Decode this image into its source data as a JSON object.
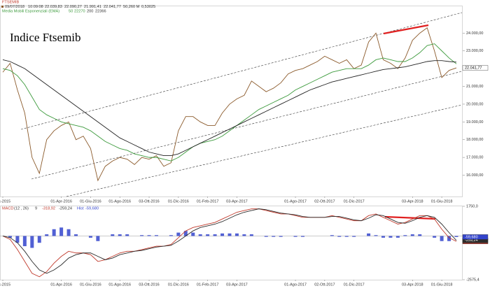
{
  "chart_data": [
    {
      "type": "line",
      "title": "Indice Ftsemib",
      "header": {
        "symbol": "FTSEMIB",
        "date": "09/07/2018",
        "time": "10:09:08",
        "open": "22.039,83",
        "high": "22.090,27",
        "low": "21.991,41",
        "volume": "50,260 M",
        "ratio": "0,53025",
        "ema_title": "Media Mobili Esponenziali (EMA)"
      },
      "categories": [
        "Dic-2015",
        null,
        null,
        null,
        null,
        null,
        null,
        null,
        "01-Apr-2016",
        null,
        null,
        null,
        "01-Giu-2016",
        null,
        null,
        null,
        "01-Ago-2016",
        null,
        null,
        null,
        "03-Ott-2016",
        null,
        null,
        null,
        "01-Dic-2016",
        null,
        null,
        null,
        "01-Feb-2017",
        null,
        null,
        null,
        "03-Apr-2017",
        null,
        null,
        null,
        null,
        null,
        null,
        null,
        "01-Ago-2017",
        null,
        null,
        null,
        "02-Ott-2017",
        null,
        null,
        null,
        "01-Dic-2017",
        null,
        null,
        null,
        null,
        null,
        null,
        null,
        "03-Apr-2018",
        null,
        null,
        null,
        "01-Giu-2018",
        null,
        null
      ],
      "series": [
        {
          "name": "FTSEMIB",
          "color": "#8b5a2b",
          "last_label": "22.041,77",
          "values": [
            21800,
            22300,
            20800,
            19500,
            17000,
            16100,
            18000,
            18500,
            18800,
            19000,
            18000,
            18200,
            17500,
            15700,
            16500,
            16800,
            17000,
            16900,
            16600,
            17000,
            16900,
            17100,
            16500,
            16700,
            18500,
            19300,
            19300,
            19000,
            18800,
            18800,
            19500,
            20000,
            20300,
            20500,
            21300,
            21000,
            20700,
            20900,
            21200,
            21700,
            21900,
            22000,
            22200,
            22400,
            22700,
            22500,
            22300,
            22500,
            22000,
            22200,
            23500,
            24000,
            22500,
            22300,
            22000,
            22600,
            23600,
            24000,
            24300,
            23000,
            21500,
            21900,
            22041.77
          ]
        },
        {
          "name": "50",
          "color": "#3c9a3c",
          "last_label": "22270",
          "values": [
            22000,
            21900,
            21600,
            21100,
            20400,
            19700,
            19400,
            19200,
            19000,
            18900,
            18800,
            18700,
            18500,
            18200,
            17900,
            17700,
            17500,
            17400,
            17200,
            17100,
            17000,
            17000,
            16900,
            16800,
            17000,
            17300,
            17600,
            17800,
            17900,
            18000,
            18200,
            18500,
            18800,
            19100,
            19400,
            19700,
            19900,
            20100,
            20300,
            20500,
            20800,
            21000,
            21200,
            21400,
            21600,
            21800,
            21900,
            22000,
            22000,
            22000,
            22200,
            22500,
            22600,
            22500,
            22400,
            22400,
            22600,
            22900,
            23300,
            23400,
            23000,
            22600,
            22270
          ]
        },
        {
          "name": "200",
          "color": "#222222",
          "last_label": "22366",
          "values": [
            22500,
            22400,
            22200,
            22000,
            21700,
            21400,
            21100,
            20800,
            20500,
            20200,
            19900,
            19600,
            19300,
            19000,
            18700,
            18400,
            18100,
            17900,
            17700,
            17500,
            17300,
            17200,
            17100,
            17100,
            17200,
            17400,
            17600,
            17800,
            18000,
            18200,
            18400,
            18600,
            18800,
            19000,
            19200,
            19400,
            19600,
            19800,
            20000,
            20200,
            20400,
            20600,
            20800,
            20950,
            21100,
            21250,
            21350,
            21450,
            21550,
            21650,
            21750,
            21850,
            21950,
            22000,
            22050,
            22100,
            22200,
            22300,
            22400,
            22450,
            22450,
            22400,
            22366
          ]
        }
      ],
      "ylim": [
        14800,
        25550
      ],
      "yticks": [
        {
          "value": 16000,
          "label": "16.000,00"
        },
        {
          "value": 17000,
          "label": "17.000,00"
        },
        {
          "value": 18000,
          "label": "18.000,00"
        },
        {
          "value": 19000,
          "label": "19.000,00"
        },
        {
          "value": 20000,
          "label": "20.000,00"
        },
        {
          "value": 21000,
          "label": "21.000,00"
        },
        {
          "value": 22000,
          "label": "22.000,00"
        },
        {
          "value": 23000,
          "label": "23.000,00"
        },
        {
          "value": 24000,
          "label": "24.000,00"
        }
      ]
    },
    {
      "type": "line",
      "title": "MACD",
      "subtitle": "(12 , 26)",
      "series": [
        {
          "name": "MACD",
          "color": "#c0392b",
          "last_label": "-318,92",
          "values": [
            0,
            -200,
            -800,
            -1500,
            -2200,
            -2400,
            -2100,
            -1600,
            -1200,
            -900,
            -1000,
            -1000,
            -1100,
            -1500,
            -1400,
            -1200,
            -1000,
            -900,
            -900,
            -800,
            -700,
            -600,
            -600,
            -500,
            -100,
            300,
            500,
            600,
            700,
            800,
            1000,
            1200,
            1400,
            1500,
            1600,
            1600,
            1500,
            1400,
            1300,
            1300,
            1200,
            1100,
            1100,
            1100,
            1100,
            1200,
            1100,
            1000,
            900,
            900,
            1200,
            1300,
            1100,
            900,
            700,
            800,
            1000,
            1200,
            1200,
            1000,
            400,
            -100,
            -318.92
          ]
        },
        {
          "name": "9",
          "color": "#2b2b2b",
          "last_label": "-259,24",
          "values": [
            0,
            -100,
            -400,
            -900,
            -1500,
            -2000,
            -2200,
            -2000,
            -1700,
            -1300,
            -1100,
            -1000,
            -1000,
            -1200,
            -1400,
            -1300,
            -1100,
            -1000,
            -900,
            -850,
            -750,
            -650,
            -600,
            -550,
            -300,
            0,
            300,
            500,
            600,
            700,
            850,
            1050,
            1250,
            1400,
            1500,
            1600,
            1550,
            1450,
            1350,
            1300,
            1250,
            1150,
            1100,
            1100,
            1100,
            1150,
            1150,
            1050,
            950,
            900,
            1050,
            1250,
            1200,
            1000,
            800,
            750,
            900,
            1100,
            1200,
            1100,
            700,
            200,
            -259.24
          ]
        },
        {
          "name": "Hist",
          "type": "bar",
          "color": "#3344cc",
          "last_label": "-59,680",
          "values": [
            0,
            -100,
            -400,
            -600,
            -700,
            -400,
            100,
            400,
            500,
            400,
            100,
            0,
            -100,
            -300,
            0,
            100,
            100,
            100,
            0,
            50,
            50,
            50,
            0,
            50,
            200,
            300,
            200,
            100,
            100,
            100,
            150,
            150,
            150,
            100,
            100,
            0,
            -50,
            -50,
            -50,
            0,
            -50,
            -50,
            0,
            0,
            0,
            50,
            -50,
            -50,
            -50,
            0,
            150,
            50,
            -100,
            -100,
            -100,
            50,
            100,
            100,
            0,
            -100,
            -300,
            -300,
            -59.68
          ]
        }
      ],
      "ylim": [
        -2575.4,
        1750
      ],
      "yticks": [
        {
          "value": -2575.4,
          "label": "-2575,4"
        },
        {
          "value": 1750,
          "label": "1750,0"
        }
      ]
    }
  ]
}
